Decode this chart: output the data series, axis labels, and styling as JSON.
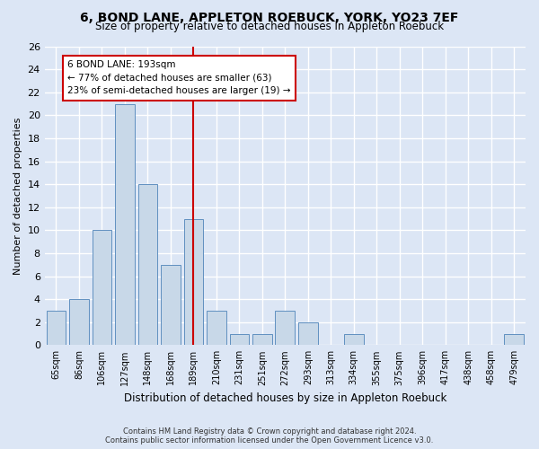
{
  "title": "6, BOND LANE, APPLETON ROEBUCK, YORK, YO23 7EF",
  "subtitle": "Size of property relative to detached houses in Appleton Roebuck",
  "xlabel": "Distribution of detached houses by size in Appleton Roebuck",
  "ylabel": "Number of detached properties",
  "categories": [
    "65sqm",
    "86sqm",
    "106sqm",
    "127sqm",
    "148sqm",
    "168sqm",
    "189sqm",
    "210sqm",
    "231sqm",
    "251sqm",
    "272sqm",
    "293sqm",
    "313sqm",
    "334sqm",
    "355sqm",
    "375sqm",
    "396sqm",
    "417sqm",
    "438sqm",
    "458sqm",
    "479sqm"
  ],
  "values": [
    3,
    4,
    10,
    21,
    14,
    7,
    11,
    3,
    1,
    1,
    3,
    2,
    0,
    1,
    0,
    0,
    0,
    0,
    0,
    0,
    1
  ],
  "bar_color": "#c8d8e8",
  "bar_edgecolor": "#6090c0",
  "vline_x_idx": 6,
  "vline_color": "#cc0000",
  "annotation_text": "6 BOND LANE: 193sqm\n← 77% of detached houses are smaller (63)\n23% of semi-detached houses are larger (19) →",
  "annotation_box_color": "#ffffff",
  "annotation_box_edgecolor": "#cc0000",
  "ylim": [
    0,
    26
  ],
  "yticks": [
    0,
    2,
    4,
    6,
    8,
    10,
    12,
    14,
    16,
    18,
    20,
    22,
    24,
    26
  ],
  "bg_color": "#dce6f5",
  "plot_bg_color": "#dce6f5",
  "grid_color": "#ffffff",
  "footer_line1": "Contains HM Land Registry data © Crown copyright and database right 2024.",
  "footer_line2": "Contains public sector information licensed under the Open Government Licence v3.0.",
  "bin_width": 21
}
